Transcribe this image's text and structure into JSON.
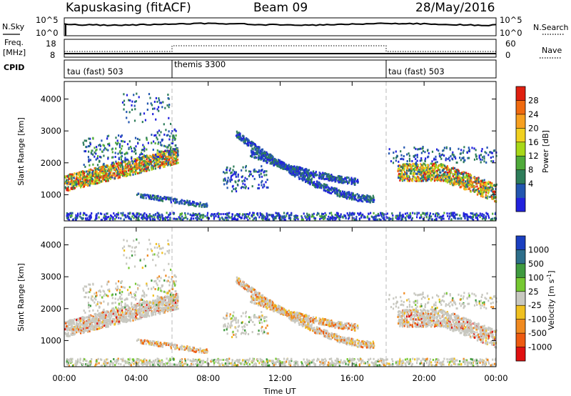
{
  "header": {
    "title_left": "Kapuskasing (fitACF)",
    "title_center": "Beam 09",
    "title_right": "28/May/2016"
  },
  "noise_panel": {
    "left_label": "N.Sky",
    "left_ticks": [
      "10^5",
      "10^0"
    ],
    "right_ticks": [
      "10^5",
      "10^0"
    ],
    "right_label": "N.Search"
  },
  "freq_panel": {
    "left_label_top": "Freq.",
    "left_label_bottom": "[MHz]",
    "left_ticks": [
      "18",
      "8"
    ],
    "right_ticks": [
      "60",
      "0"
    ],
    "right_label": "Nave"
  },
  "cpid_panel": {
    "label": "CPID",
    "segments": [
      {
        "start_hour": 0,
        "text": "tau (fast) 503"
      },
      {
        "start_hour": 6,
        "text": "themis 3300"
      },
      {
        "start_hour": 18,
        "text": "tau (fast) 503"
      }
    ]
  },
  "time_axis": {
    "label": "Time UT",
    "ticks": [
      "00:00",
      "04:00",
      "08:00",
      "12:00",
      "16:00",
      "20:00",
      "00:00"
    ],
    "hours": [
      0,
      4,
      8,
      12,
      16,
      20,
      24
    ]
  },
  "power_panel": {
    "ylabel": "Slant Range [km]",
    "yticks": [
      "1000",
      "2000",
      "3000",
      "4000"
    ],
    "yvalues": [
      1000,
      2000,
      3000,
      4000
    ],
    "cbar_label": "Power [dB]",
    "cbar_ticks": [
      "28",
      "24",
      "20",
      "16",
      "12",
      "8",
      "4"
    ],
    "cbar_values": [
      28,
      24,
      20,
      16,
      12,
      8,
      4
    ],
    "cbar_colors": [
      "#2222dd",
      "#2356b0",
      "#2e7d5a",
      "#4faa3a",
      "#a8d818",
      "#f0d020",
      "#f7a020",
      "#f06a10",
      "#e02010"
    ]
  },
  "velocity_panel": {
    "ylabel": "Slant Range [km]",
    "yticks": [
      "1000",
      "2000",
      "3000",
      "4000"
    ],
    "yvalues": [
      1000,
      2000,
      3000,
      4000
    ],
    "cbar_label": "Velocity [m s",
    "cbar_label_sup": "-1",
    "cbar_label_end": "]",
    "cbar_ticks": [
      "1000",
      "500",
      "100",
      "25",
      "-25",
      "-100",
      "-500",
      "-1000"
    ],
    "cbar_colors": [
      "#1a3fc0",
      "#2d6e8a",
      "#3f9a3f",
      "#76c832",
      "#c8c8c0",
      "#f0c020",
      "#f08a20",
      "#ee5a10",
      "#e01010"
    ]
  },
  "chart_data": {
    "type": "heatmap",
    "x_range": [
      0,
      24
    ],
    "y_range": [
      180,
      4550
    ],
    "x_unit": "hours UT",
    "y_unit": "km",
    "mode_change_hours": [
      6,
      18
    ],
    "scatter_features": [
      {
        "name": "near-range band",
        "hours": [
          0,
          24
        ],
        "range_km": [
          200,
          500
        ]
      },
      {
        "name": "morning echo band",
        "hours": [
          0,
          6.2
        ],
        "range_km": [
          900,
          2600
        ]
      },
      {
        "name": "midday arcs",
        "hours": [
          9.5,
          17.2
        ],
        "range_km": [
          700,
          3100
        ]
      },
      {
        "name": "evening echo band",
        "hours": [
          18.5,
          24
        ],
        "range_km": [
          600,
          2200
        ]
      }
    ]
  }
}
